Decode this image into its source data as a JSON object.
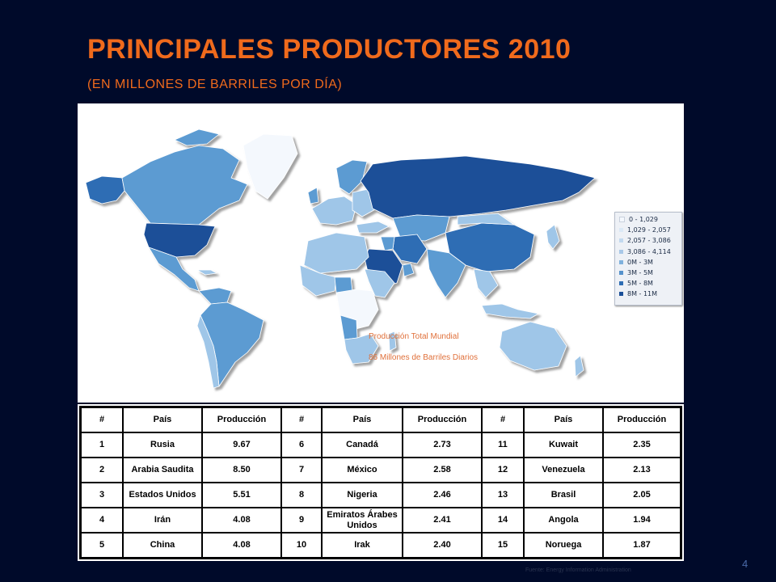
{
  "slide": {
    "title": "PRINCIPALES PRODUCTORES 2010",
    "subtitle": "(EN MILLONES DE BARRILES POR DÍA)",
    "page_number": "4",
    "source_note": "Fuente: Energy Information Administration"
  },
  "map": {
    "caption_line1": "Producción Total Mundial",
    "caption_line2": "86 Millones de Barriles Diarios",
    "colors": {
      "ocean": "#ffffff",
      "very_light": "#f4f8fd",
      "light": "#9fc6e8",
      "medium": "#5b9bd2",
      "dark": "#2e6db4",
      "darkest": "#1a4f98"
    },
    "legend": [
      {
        "label": "0 - 1,029",
        "color": "#f4f8fd"
      },
      {
        "label": "1,029 - 2,057",
        "color": "#dbe9f6"
      },
      {
        "label": "2,057 - 3,086",
        "color": "#c2d9ef"
      },
      {
        "label": "3,086 - 4,114",
        "color": "#a8c8e8"
      },
      {
        "label": "0M - 3M",
        "color": "#7fb1dd"
      },
      {
        "label": "3M - 5M",
        "color": "#5592cc"
      },
      {
        "label": "5M - 8M",
        "color": "#2e6db4"
      },
      {
        "label": "8M - 11M",
        "color": "#1a4f98"
      }
    ]
  },
  "table": {
    "headers": [
      "#",
      "País",
      "Producción",
      "#",
      "País",
      "Producción",
      "#",
      "País",
      "Producción"
    ],
    "rows": [
      [
        "1",
        "Rusia",
        "9.67",
        "6",
        "Canadá",
        "2.73",
        "11",
        "Kuwait",
        "2.35"
      ],
      [
        "2",
        "Arabia Saudita",
        "8.50",
        "7",
        "México",
        "2.58",
        "12",
        "Venezuela",
        "2.13"
      ],
      [
        "3",
        "Estados Unidos",
        "5.51",
        "8",
        "Nigeria",
        "2.46",
        "13",
        "Brasil",
        "2.05"
      ],
      [
        "4",
        "Irán",
        "4.08",
        "9",
        "Emiratos Árabes Unidos",
        "2.41",
        "14",
        "Angola",
        "1.94"
      ],
      [
        "5",
        "China",
        "4.08",
        "10",
        "Irak",
        "2.40",
        "15",
        "Noruega",
        "1.87"
      ]
    ]
  }
}
